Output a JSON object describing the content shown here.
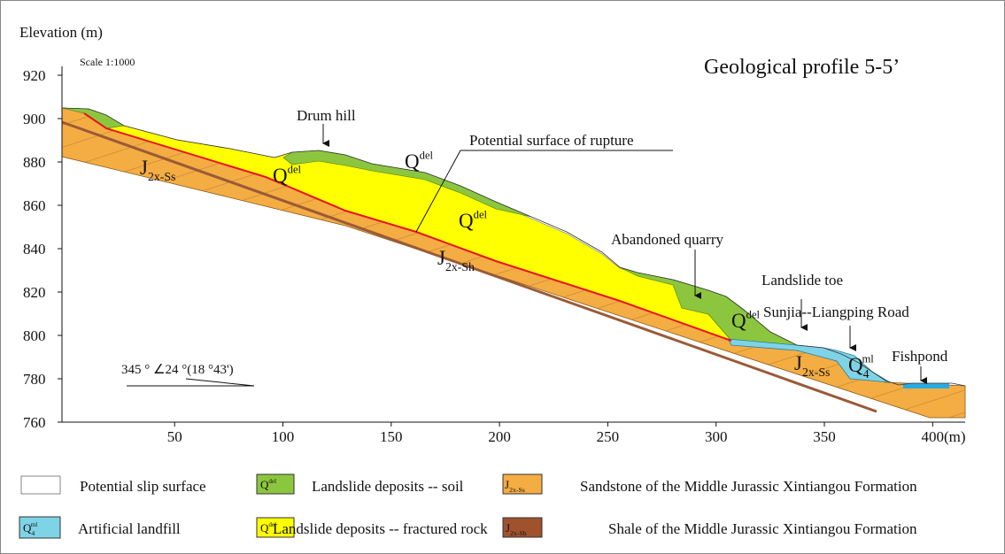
{
  "title": "Geological profile 5-5’",
  "scale": "Scale 1:1000",
  "orientation": "345 ° ∠24 °(18 °43')",
  "y_axis": {
    "label": "Elevation (m)",
    "lim": [
      760,
      920
    ],
    "ticks": [
      760,
      780,
      800,
      820,
      840,
      860,
      880,
      900,
      920
    ]
  },
  "x_axis": {
    "label": "(m)",
    "lim": [
      -2,
      415
    ],
    "ticks": [
      50,
      100,
      150,
      200,
      250,
      300,
      350,
      400
    ]
  },
  "annotations": [
    "Drum hill",
    "Potential surface of rupture",
    "Abandoned quarry",
    "Landslide toe",
    "Sunjia--Liangping Road",
    "Fishpond"
  ],
  "unit_labels": [
    {
      "base": "J",
      "sub": "2x-Ss"
    },
    {
      "base": "Q",
      "sup": "del"
    },
    {
      "base": "Q",
      "sup": "del"
    },
    {
      "base": "Q",
      "sup": "del"
    },
    {
      "base": "J",
      "sub": "2x-Sh"
    },
    {
      "base": "Q",
      "sup": "del"
    },
    {
      "base": "J",
      "sub": "2x-Ss"
    },
    {
      "base": "Q",
      "sub": "4",
      "sup": "ml"
    }
  ],
  "legend": [
    {
      "label": "Potential slip surface"
    },
    {
      "symbol": {
        "base": "Q",
        "sup": "del"
      },
      "label": "Landslide deposits -- soil"
    },
    {
      "symbol": {
        "base": "J",
        "sub": "2x-Ss"
      },
      "label": "Sandstone of the Middle Jurassic Xintiangou Formation"
    },
    {
      "symbol": {
        "base": "Q",
        "sub": "4",
        "sup": "ml"
      },
      "label": "Artificial landfill"
    },
    {
      "symbol": {
        "base": "Q",
        "sup": "del"
      },
      "label": "Landslide deposits -- fractured rock"
    },
    {
      "symbol": {
        "base": "J",
        "sub": "2x-Sh"
      },
      "label": "Shale of the Middle Jurassic Xintiangou Formation"
    }
  ]
}
